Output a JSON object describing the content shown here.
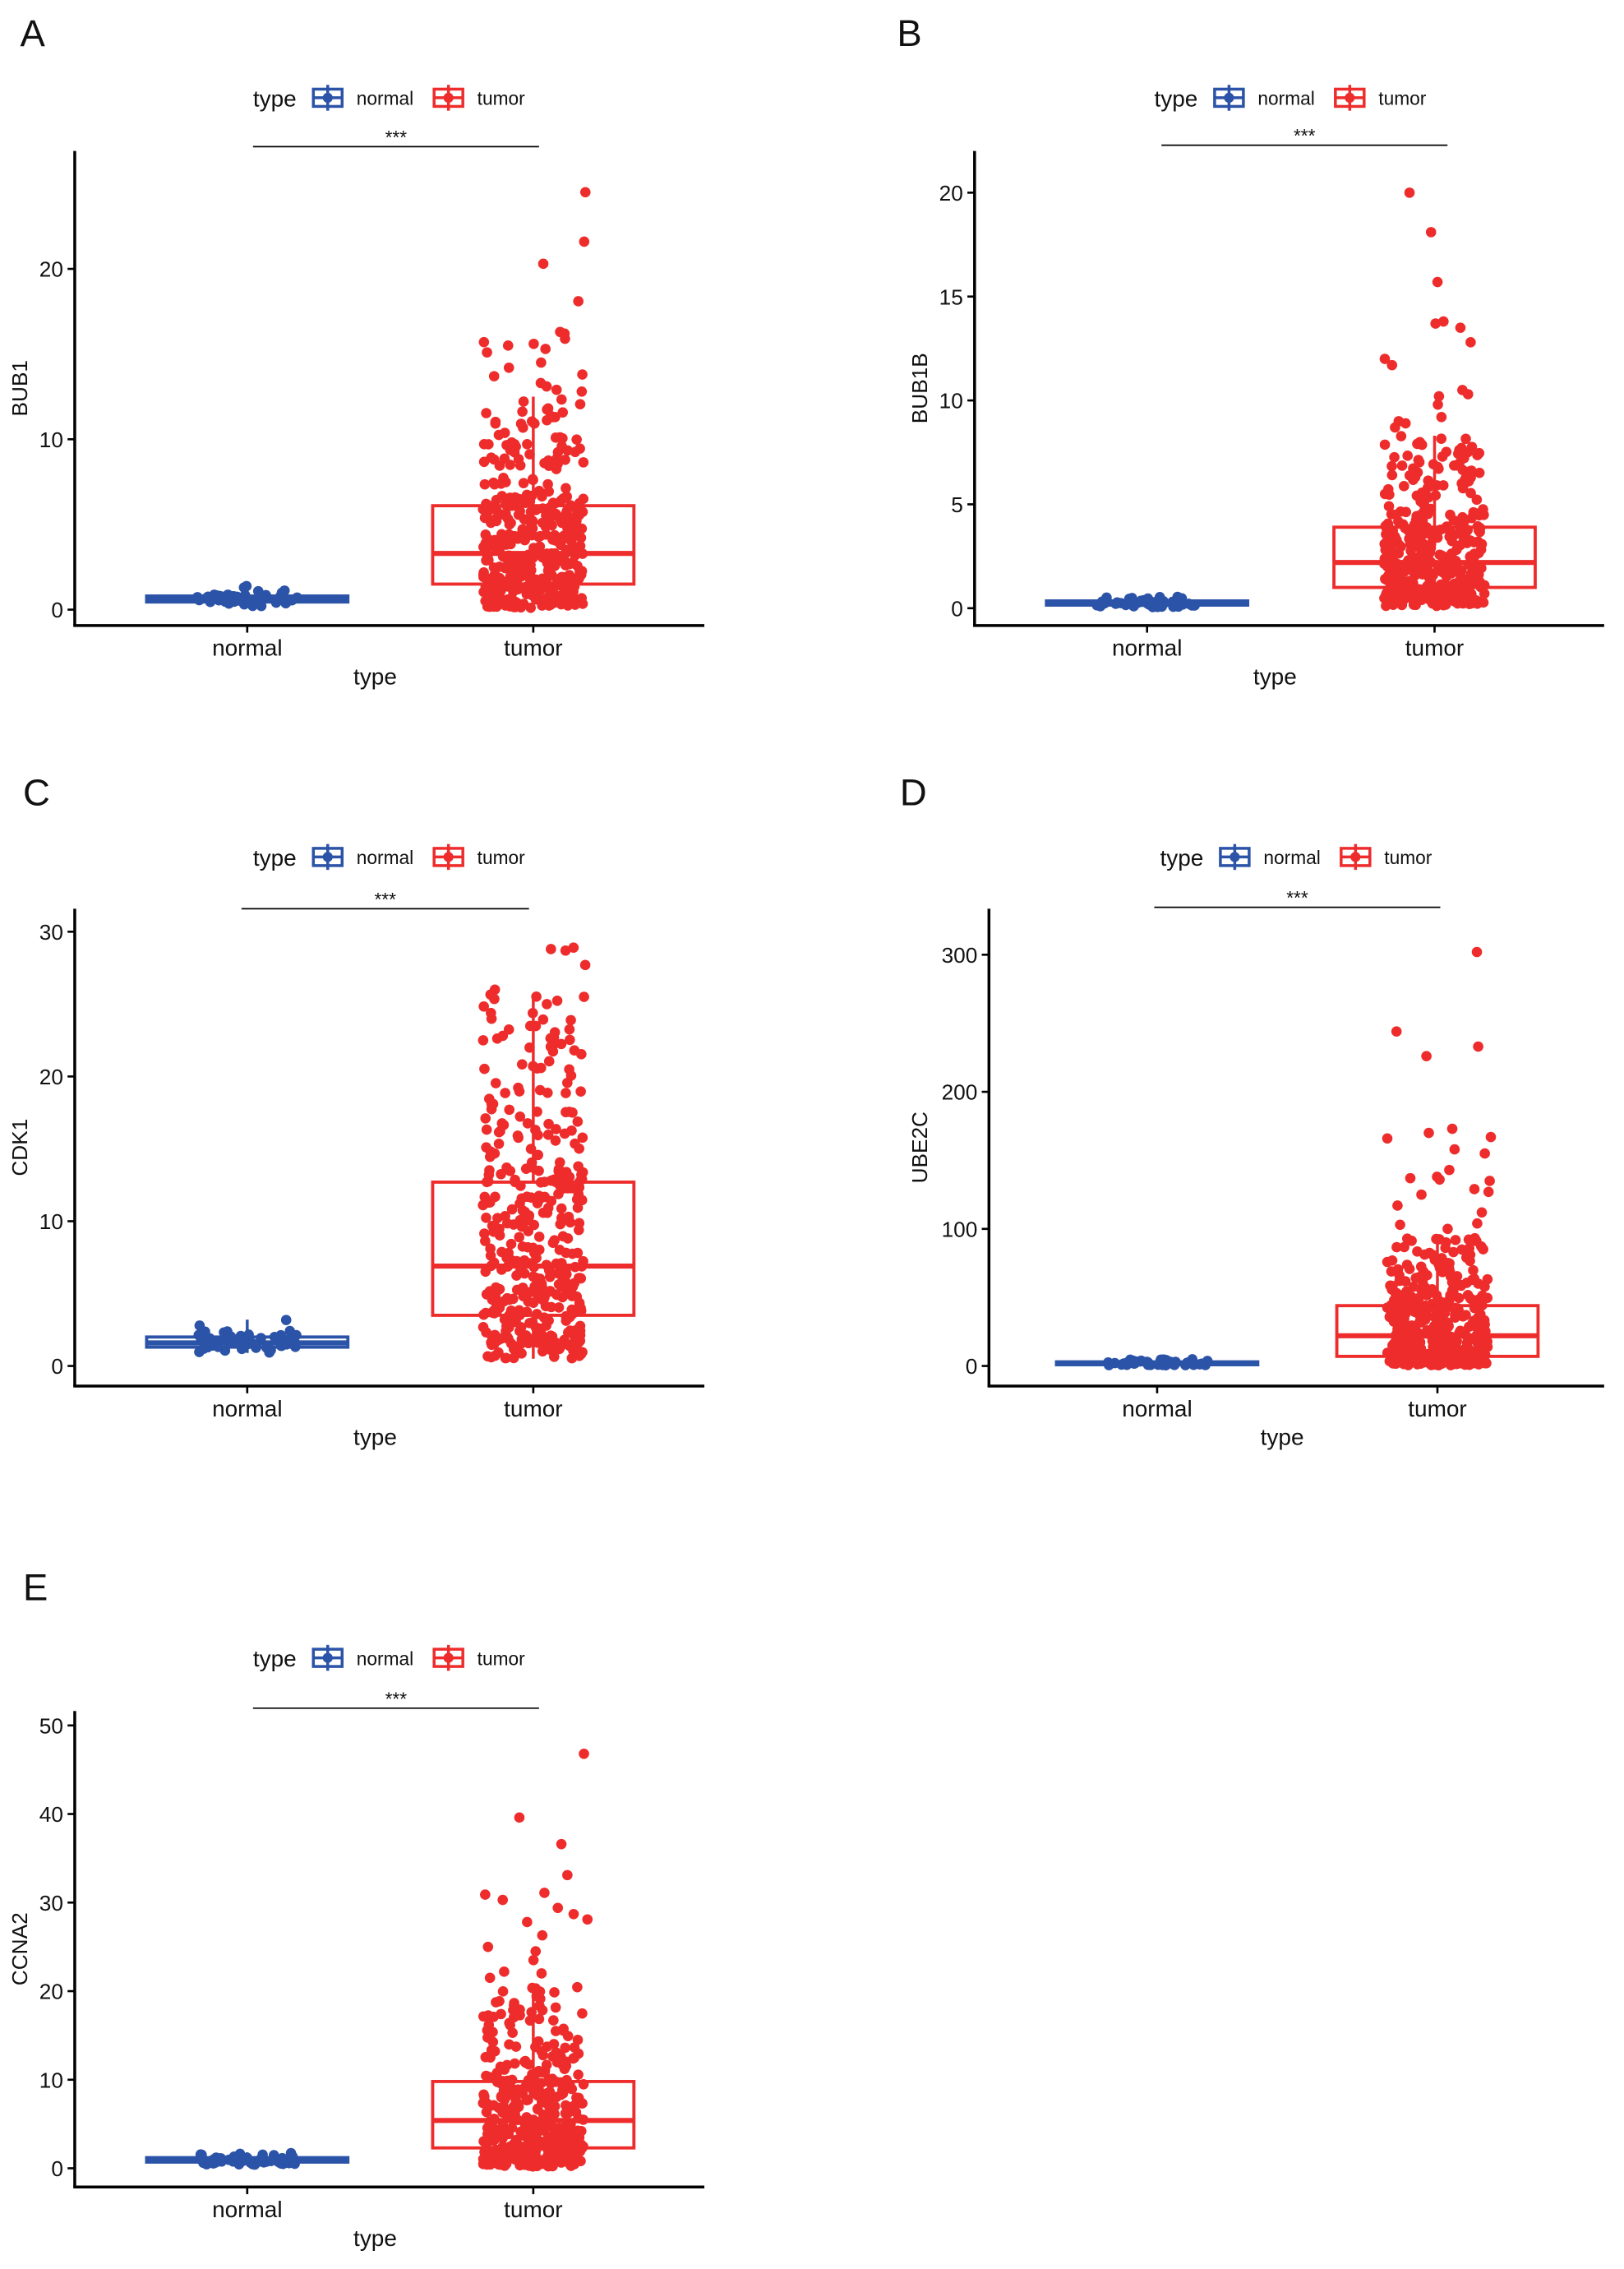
{
  "colors": {
    "normal": "#2B53A7",
    "tumor": "#EE2C2C",
    "axis": "#000000"
  },
  "legend": {
    "title": "type",
    "items": [
      "normal",
      "tumor"
    ]
  },
  "chart_data": [
    {
      "panel": "A",
      "type": "box",
      "ylabel": "BUB1",
      "xlabel": "type",
      "categories": [
        "normal",
        "tumor"
      ],
      "yticks": [
        0,
        10,
        20
      ],
      "ylim": [
        -1,
        27
      ],
      "significance": "***",
      "series": [
        {
          "name": "normal",
          "min": 0.2,
          "q1": 0.45,
          "median": 0.6,
          "q3": 0.8,
          "max": 1.4,
          "n": 50,
          "outliers": []
        },
        {
          "name": "tumor",
          "min": 0.1,
          "q1": 1.5,
          "median": 3.3,
          "q3": 6.1,
          "max": 12.5,
          "n": 400,
          "outliers": [
            24.5,
            21.6,
            20.3,
            18.1,
            16.3,
            16.2,
            15.9,
            15.7,
            15.6,
            15.5,
            15.3,
            15.1,
            14.5,
            14.2,
            13.8,
            13.7,
            13.3,
            13.1,
            12.9,
            12.8
          ]
        }
      ]
    },
    {
      "panel": "B",
      "type": "box",
      "ylabel": "BUB1B",
      "xlabel": "type",
      "categories": [
        "normal",
        "tumor"
      ],
      "yticks": [
        0,
        5,
        10,
        15,
        20
      ],
      "ylim": [
        -0.8,
        22
      ],
      "significance": "***",
      "series": [
        {
          "name": "normal",
          "min": 0.05,
          "q1": 0.15,
          "median": 0.25,
          "q3": 0.35,
          "max": 0.6,
          "n": 50,
          "outliers": []
        },
        {
          "name": "tumor",
          "min": 0.1,
          "q1": 1.0,
          "median": 2.2,
          "q3": 3.9,
          "max": 8.3,
          "n": 400,
          "outliers": [
            20.0,
            18.1,
            15.7,
            13.8,
            13.7,
            13.5,
            12.8,
            12.0,
            11.7,
            10.5,
            10.3,
            10.2,
            9.8,
            9.2,
            9.0,
            8.9,
            8.7
          ]
        }
      ]
    },
    {
      "panel": "C",
      "type": "box",
      "ylabel": "CDK1",
      "xlabel": "type",
      "categories": [
        "normal",
        "tumor"
      ],
      "yticks": [
        0,
        10,
        20,
        30
      ],
      "ylim": [
        -1.4,
        31.5
      ],
      "significance": "***",
      "series": [
        {
          "name": "normal",
          "min": 0.9,
          "q1": 1.3,
          "median": 1.6,
          "q3": 2.0,
          "max": 3.2,
          "n": 50,
          "outliers": []
        },
        {
          "name": "tumor",
          "min": 0.5,
          "q1": 3.5,
          "median": 6.9,
          "q3": 12.7,
          "max": 25.7,
          "n": 400,
          "outliers": [
            28.9,
            28.8,
            28.7,
            27.7,
            26.0,
            25.5
          ]
        }
      ]
    },
    {
      "panel": "D",
      "type": "box",
      "ylabel": "UBE2C",
      "xlabel": "type",
      "categories": [
        "normal",
        "tumor"
      ],
      "yticks": [
        0,
        100,
        200,
        300
      ],
      "ylim": [
        -15,
        333
      ],
      "significance": "***",
      "series": [
        {
          "name": "normal",
          "min": 0.5,
          "q1": 1,
          "median": 2,
          "q3": 3,
          "max": 5,
          "n": 50,
          "outliers": []
        },
        {
          "name": "tumor",
          "min": 0.5,
          "q1": 7,
          "median": 22,
          "q3": 44,
          "max": 94,
          "n": 400,
          "outliers": [
            302,
            244,
            233,
            226,
            173,
            170,
            167,
            166,
            158,
            155,
            143,
            138,
            137,
            136,
            135,
            129,
            127,
            125,
            117,
            112,
            104,
            103,
            100
          ]
        }
      ]
    },
    {
      "panel": "E",
      "type": "box",
      "ylabel": "CCNA2",
      "xlabel": "type",
      "categories": [
        "normal",
        "tumor"
      ],
      "yticks": [
        0,
        10,
        20,
        30,
        40,
        50
      ],
      "ylim": [
        -2,
        51.5
      ],
      "significance": "***",
      "series": [
        {
          "name": "normal",
          "min": 0.4,
          "q1": 0.7,
          "median": 0.9,
          "q3": 1.2,
          "max": 1.8,
          "n": 50,
          "outliers": []
        },
        {
          "name": "tumor",
          "min": 0.2,
          "q1": 2.3,
          "median": 5.4,
          "q3": 9.8,
          "max": 20.5,
          "n": 400,
          "outliers": [
            46.8,
            39.6,
            36.6,
            33.1,
            31.1,
            30.9,
            30.3,
            29.4,
            28.7,
            28.1,
            27.8,
            26.3,
            25.0,
            24.5,
            23.5,
            22.2,
            22.0,
            21.5
          ]
        }
      ]
    }
  ]
}
